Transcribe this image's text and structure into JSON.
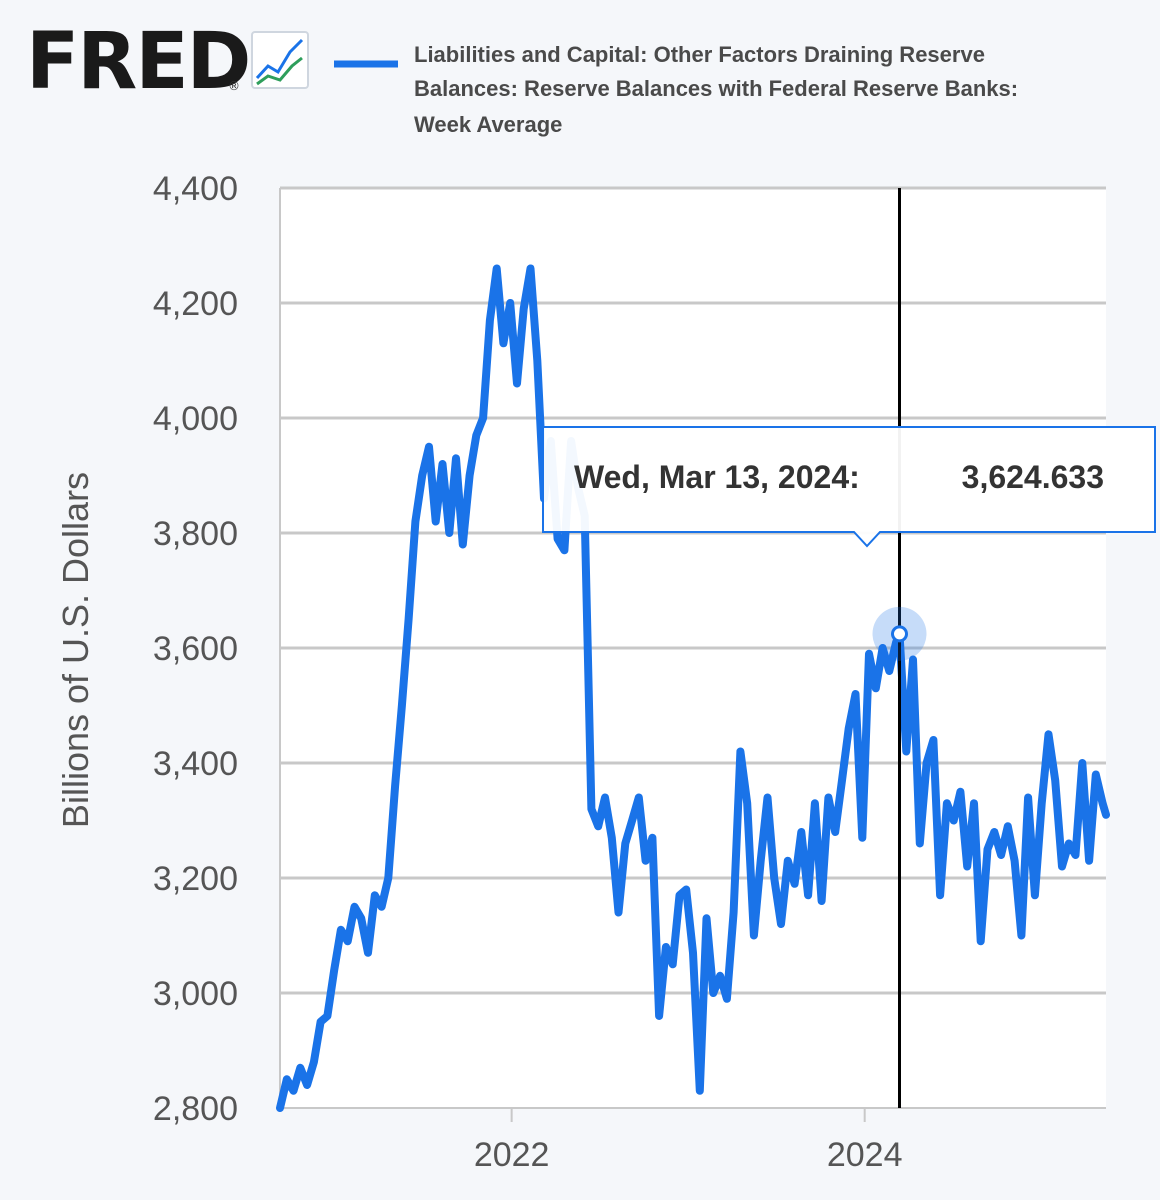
{
  "logo": {
    "text": "FRED",
    "registered": "®",
    "icon": "chart-line-icon"
  },
  "colors": {
    "series": "#1a73e8",
    "grid": "#c8c8c8",
    "plot_bg": "#ffffff",
    "page_bg": "#f5f7fa",
    "crosshair": "#000000"
  },
  "chart_data": {
    "type": "line",
    "title": "",
    "legend": {
      "lines": [
        "Liabilities and Capital: Other Factors Draining Reserve",
        "Balances: Reserve Balances with Federal Reserve Banks:",
        "Week Average"
      ],
      "placement": "top"
    },
    "xlabel": "",
    "ylabel": "Billions of U.S. Dollars",
    "xlim": [
      "2020-09-09",
      "2025-05-14"
    ],
    "ylim": [
      2800,
      4400
    ],
    "yticks": [
      2800,
      3000,
      3200,
      3400,
      3600,
      3800,
      4000,
      4200,
      4400
    ],
    "ytick_labels": [
      "2,800",
      "3,000",
      "3,200",
      "3,400",
      "3,600",
      "3,800",
      "4,000",
      "4,200",
      "4,400"
    ],
    "xticks": [
      "2022-01-01",
      "2024-01-01"
    ],
    "xtick_labels": [
      "2022",
      "2024"
    ],
    "grid": "horizontal",
    "tooltip": {
      "date": "2024-03-13",
      "label": "Wed, Mar 13, 2024:",
      "value": 3624.633,
      "value_label": "3,624.633"
    },
    "series": [
      {
        "name": "Liabilities and Capital: Other Factors Draining Reserve Balances: Reserve Balances with Federal Reserve Banks: Week Average",
        "points": [
          [
            "2020-09-09",
            2800
          ],
          [
            "2020-09-23",
            2850
          ],
          [
            "2020-10-07",
            2830
          ],
          [
            "2020-10-21",
            2870
          ],
          [
            "2020-11-04",
            2840
          ],
          [
            "2020-11-18",
            2880
          ],
          [
            "2020-12-02",
            2950
          ],
          [
            "2020-12-16",
            2960
          ],
          [
            "2020-12-30",
            3040
          ],
          [
            "2021-01-13",
            3110
          ],
          [
            "2021-01-27",
            3090
          ],
          [
            "2021-02-10",
            3150
          ],
          [
            "2021-02-24",
            3130
          ],
          [
            "2021-03-10",
            3070
          ],
          [
            "2021-03-24",
            3170
          ],
          [
            "2021-04-07",
            3150
          ],
          [
            "2021-04-21",
            3200
          ],
          [
            "2021-05-05",
            3360
          ],
          [
            "2021-05-19",
            3500
          ],
          [
            "2021-06-02",
            3650
          ],
          [
            "2021-06-16",
            3820
          ],
          [
            "2021-06-30",
            3900
          ],
          [
            "2021-07-14",
            3950
          ],
          [
            "2021-07-28",
            3820
          ],
          [
            "2021-08-11",
            3920
          ],
          [
            "2021-08-25",
            3800
          ],
          [
            "2021-09-08",
            3930
          ],
          [
            "2021-09-22",
            3780
          ],
          [
            "2021-10-06",
            3900
          ],
          [
            "2021-10-20",
            3970
          ],
          [
            "2021-11-03",
            4000
          ],
          [
            "2021-11-17",
            4170
          ],
          [
            "2021-12-01",
            4260
          ],
          [
            "2021-12-15",
            4130
          ],
          [
            "2021-12-29",
            4200
          ],
          [
            "2022-01-12",
            4060
          ],
          [
            "2022-01-26",
            4190
          ],
          [
            "2022-02-09",
            4260
          ],
          [
            "2022-02-23",
            4100
          ],
          [
            "2022-03-09",
            3860
          ],
          [
            "2022-03-23",
            3960
          ],
          [
            "2022-04-06",
            3790
          ],
          [
            "2022-04-20",
            3770
          ],
          [
            "2022-05-04",
            3960
          ],
          [
            "2022-05-18",
            3880
          ],
          [
            "2022-06-01",
            3830
          ],
          [
            "2022-06-15",
            3320
          ],
          [
            "2022-06-29",
            3290
          ],
          [
            "2022-07-13",
            3340
          ],
          [
            "2022-07-27",
            3270
          ],
          [
            "2022-08-10",
            3140
          ],
          [
            "2022-08-24",
            3260
          ],
          [
            "2022-09-07",
            3300
          ],
          [
            "2022-09-21",
            3340
          ],
          [
            "2022-10-05",
            3230
          ],
          [
            "2022-10-19",
            3270
          ],
          [
            "2022-11-02",
            2960
          ],
          [
            "2022-11-16",
            3080
          ],
          [
            "2022-11-30",
            3050
          ],
          [
            "2022-12-14",
            3170
          ],
          [
            "2022-12-28",
            3180
          ],
          [
            "2023-01-11",
            3070
          ],
          [
            "2023-01-25",
            2830
          ],
          [
            "2023-02-08",
            3130
          ],
          [
            "2023-02-22",
            3000
          ],
          [
            "2023-03-08",
            3030
          ],
          [
            "2023-03-22",
            2990
          ],
          [
            "2023-04-05",
            3140
          ],
          [
            "2023-04-19",
            3420
          ],
          [
            "2023-05-03",
            3330
          ],
          [
            "2023-05-17",
            3100
          ],
          [
            "2023-05-31",
            3230
          ],
          [
            "2023-06-14",
            3340
          ],
          [
            "2023-06-28",
            3200
          ],
          [
            "2023-07-12",
            3120
          ],
          [
            "2023-07-26",
            3230
          ],
          [
            "2023-08-09",
            3190
          ],
          [
            "2023-08-23",
            3280
          ],
          [
            "2023-09-06",
            3170
          ],
          [
            "2023-09-20",
            3330
          ],
          [
            "2023-10-04",
            3160
          ],
          [
            "2023-10-18",
            3340
          ],
          [
            "2023-11-01",
            3280
          ],
          [
            "2023-11-15",
            3370
          ],
          [
            "2023-11-29",
            3460
          ],
          [
            "2023-12-13",
            3520
          ],
          [
            "2023-12-27",
            3270
          ],
          [
            "2024-01-10",
            3590
          ],
          [
            "2024-01-24",
            3530
          ],
          [
            "2024-02-07",
            3600
          ],
          [
            "2024-02-21",
            3560
          ],
          [
            "2024-03-06",
            3610
          ],
          [
            "2024-03-13",
            3624.633
          ],
          [
            "2024-03-27",
            3420
          ],
          [
            "2024-04-10",
            3580
          ],
          [
            "2024-04-24",
            3260
          ],
          [
            "2024-05-08",
            3400
          ],
          [
            "2024-05-22",
            3440
          ],
          [
            "2024-06-05",
            3170
          ],
          [
            "2024-06-19",
            3330
          ],
          [
            "2024-07-03",
            3300
          ],
          [
            "2024-07-17",
            3350
          ],
          [
            "2024-07-31",
            3220
          ],
          [
            "2024-08-14",
            3330
          ],
          [
            "2024-08-28",
            3090
          ],
          [
            "2024-09-11",
            3250
          ],
          [
            "2024-09-25",
            3280
          ],
          [
            "2024-10-09",
            3240
          ],
          [
            "2024-10-23",
            3290
          ],
          [
            "2024-11-06",
            3230
          ],
          [
            "2024-11-20",
            3100
          ],
          [
            "2024-12-04",
            3340
          ],
          [
            "2024-12-18",
            3170
          ],
          [
            "2025-01-01",
            3330
          ],
          [
            "2025-01-15",
            3450
          ],
          [
            "2025-01-29",
            3370
          ],
          [
            "2025-02-12",
            3220
          ],
          [
            "2025-02-26",
            3260
          ],
          [
            "2025-03-12",
            3240
          ],
          [
            "2025-03-26",
            3400
          ],
          [
            "2025-04-09",
            3230
          ],
          [
            "2025-04-23",
            3380
          ],
          [
            "2025-05-07",
            3330
          ],
          [
            "2025-05-14",
            3310
          ]
        ]
      }
    ]
  }
}
